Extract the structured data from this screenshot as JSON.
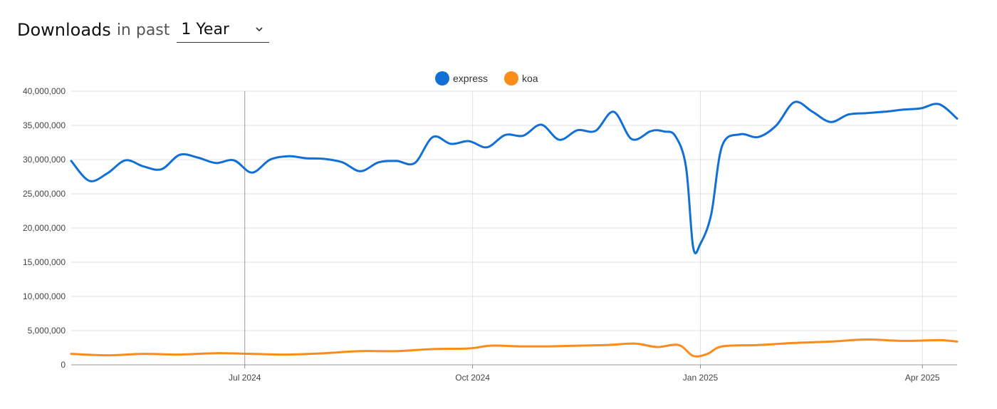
{
  "header": {
    "title": "Downloads",
    "subtitle": "in past",
    "period_selected": "1 Year"
  },
  "colors": {
    "express": "#1170d6",
    "koa": "#fb8c1a",
    "grid": "#e3e3e3",
    "major_grid": "#c8c8c8"
  },
  "chart_data": {
    "type": "line",
    "xlim": [
      0,
      12.25
    ],
    "ylim": [
      0,
      40000000
    ],
    "y_ticks": [
      {
        "value": 0,
        "label": "0"
      },
      {
        "value": 5000000,
        "label": "5,000,000"
      },
      {
        "value": 10000000,
        "label": "10,000,000"
      },
      {
        "value": 15000000,
        "label": "15,000,000"
      },
      {
        "value": 20000000,
        "label": "20,000,000"
      },
      {
        "value": 25000000,
        "label": "25,000,000"
      },
      {
        "value": 30000000,
        "label": "30,000,000"
      },
      {
        "value": 35000000,
        "label": "35,000,000"
      },
      {
        "value": 40000000,
        "label": "40,000,000"
      }
    ],
    "x_ticks": [
      {
        "value": 2.4,
        "label": "Jul 2024"
      },
      {
        "value": 5.55,
        "label": "Oct 2024"
      },
      {
        "value": 8.7,
        "label": "Jan 2025"
      },
      {
        "value": 11.77,
        "label": "Apr 2025"
      }
    ],
    "legend_position": "top-center",
    "series": [
      {
        "name": "express",
        "x": [
          0,
          0.25,
          0.5,
          0.75,
          1.0,
          1.25,
          1.5,
          1.75,
          2.0,
          2.25,
          2.5,
          2.75,
          3.0,
          3.25,
          3.5,
          3.75,
          4.0,
          4.25,
          4.5,
          4.75,
          5.0,
          5.25,
          5.5,
          5.75,
          6.0,
          6.25,
          6.5,
          6.75,
          7.0,
          7.25,
          7.5,
          7.75,
          8.0,
          8.1,
          8.2,
          8.35,
          8.5,
          8.6,
          8.7,
          8.85,
          9.0,
          9.25,
          9.5,
          9.75,
          10.0,
          10.25,
          10.5,
          10.75,
          11.0,
          11.25,
          11.5,
          11.75,
          12.0,
          12.25
        ],
        "y": [
          29800000,
          26900000,
          28000000,
          29900000,
          29000000,
          28600000,
          30700000,
          30300000,
          29500000,
          29900000,
          28100000,
          30000000,
          30500000,
          30200000,
          30100000,
          29600000,
          28300000,
          29600000,
          29800000,
          29500000,
          33300000,
          32300000,
          32700000,
          31800000,
          33600000,
          33500000,
          35100000,
          32900000,
          34300000,
          34200000,
          37000000,
          33000000,
          34100000,
          34300000,
          34100000,
          33500000,
          29000000,
          17200000,
          17700000,
          22000000,
          32000000,
          33700000,
          33300000,
          35000000,
          38400000,
          37000000,
          35500000,
          36600000,
          36800000,
          37000000,
          37300000,
          37500000,
          38100000,
          36000000
        ]
      },
      {
        "name": "koa",
        "x": [
          0,
          0.5,
          1.0,
          1.5,
          2.0,
          2.5,
          3.0,
          3.5,
          4.0,
          4.5,
          5.0,
          5.5,
          5.8,
          6.2,
          6.6,
          7.0,
          7.4,
          7.8,
          8.1,
          8.4,
          8.6,
          8.8,
          9.0,
          9.5,
          10.0,
          10.5,
          11.0,
          11.5,
          12.0,
          12.25
        ],
        "y": [
          1600000,
          1400000,
          1600000,
          1500000,
          1700000,
          1600000,
          1500000,
          1700000,
          2000000,
          2000000,
          2300000,
          2400000,
          2800000,
          2700000,
          2700000,
          2800000,
          2900000,
          3100000,
          2600000,
          2900000,
          1300000,
          1600000,
          2700000,
          2900000,
          3200000,
          3400000,
          3700000,
          3500000,
          3600000,
          3400000
        ]
      }
    ]
  }
}
